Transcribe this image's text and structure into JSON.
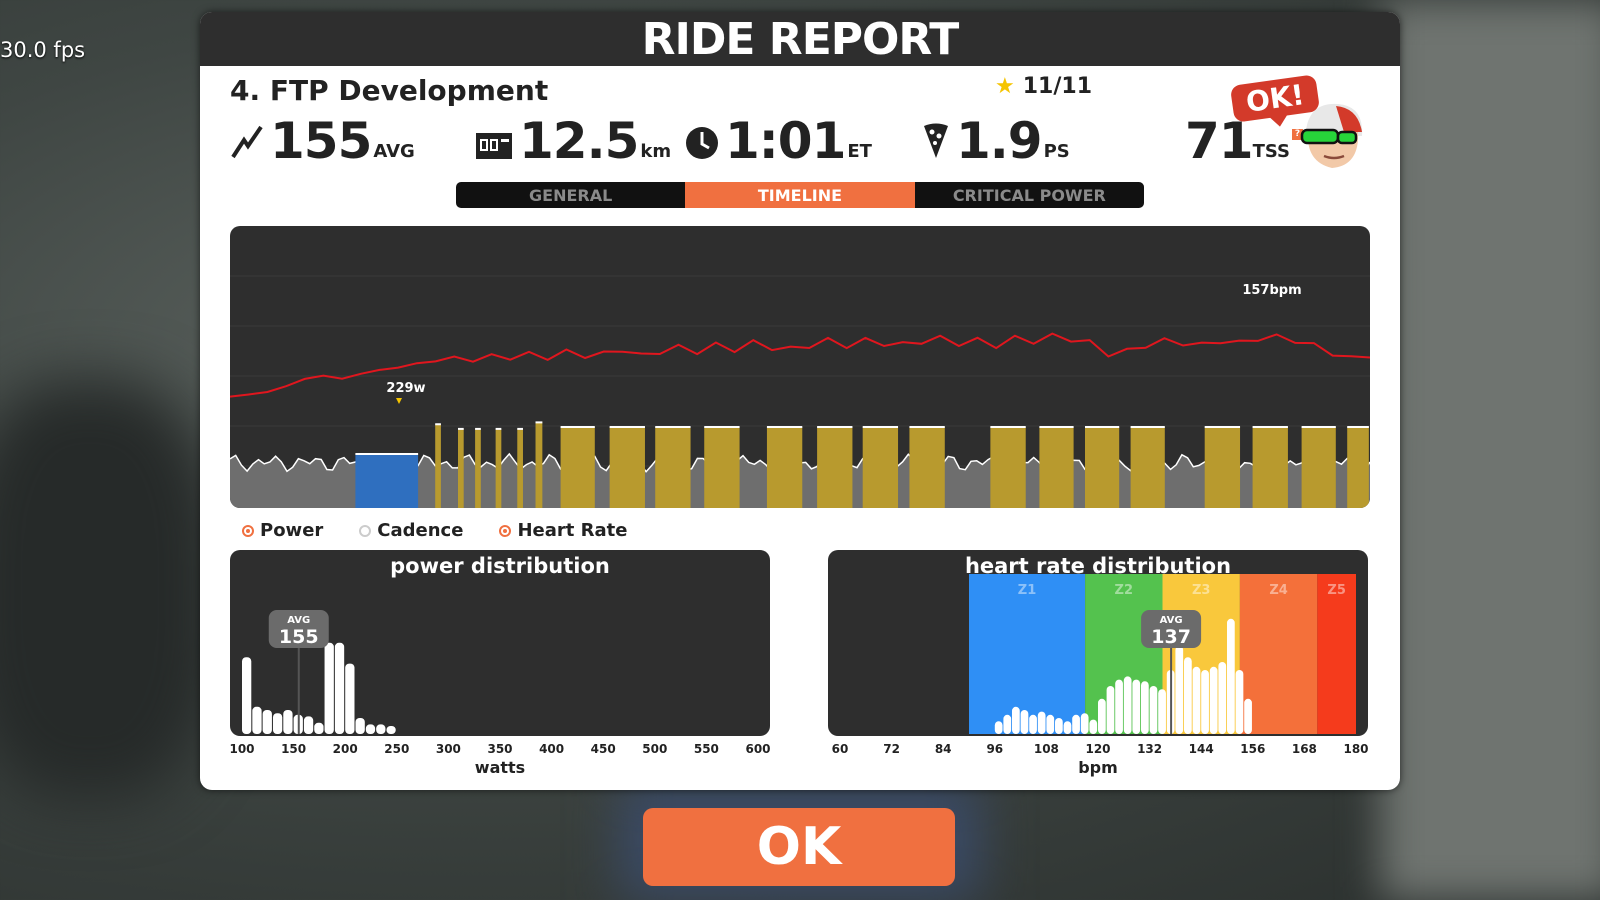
{
  "overlay": {
    "fps": "30.0 fps"
  },
  "report": {
    "title": "RIDE REPORT",
    "workout_name": "4. FTP Development",
    "stars": "11/11"
  },
  "stats": {
    "power": {
      "value": "155",
      "unit": "AVG",
      "icon": "power-bolt-icon"
    },
    "distance": {
      "value": "12.5",
      "unit": "km",
      "icon": "odometer-icon"
    },
    "time": {
      "value": "1:01",
      "unit": "ET",
      "icon": "clock-icon"
    },
    "pizza": {
      "value": "1.9",
      "unit": "PS",
      "icon": "pizza-icon"
    },
    "tss": {
      "value": "71",
      "unit": "TSS",
      "help": "?"
    }
  },
  "badge": {
    "label": "OK!"
  },
  "tabs": [
    {
      "label": "GENERAL",
      "active": false
    },
    {
      "label": "TIMELINE",
      "active": true
    },
    {
      "label": "CRITICAL POWER",
      "active": false
    }
  ],
  "timeline": {
    "power_peak_label": "229w",
    "hr_peak_label": "157bpm",
    "colors": {
      "hr_line": "#e0161e",
      "zone_blue": "#2f6fbf",
      "zone_yellow": "#b89a2e",
      "zone_green": "#5fa040",
      "zone_gray": "#6e6e6e"
    },
    "intervals": [
      {
        "start": 0.11,
        "end": 0.165,
        "zone": "blue",
        "level": 0.58
      },
      {
        "start": 0.18,
        "end": 0.185,
        "zone": "yellow",
        "level": 0.9
      },
      {
        "start": 0.2,
        "end": 0.205,
        "zone": "yellow",
        "level": 0.85
      },
      {
        "start": 0.215,
        "end": 0.22,
        "zone": "yellow",
        "level": 0.85
      },
      {
        "start": 0.233,
        "end": 0.238,
        "zone": "yellow",
        "level": 0.85
      },
      {
        "start": 0.252,
        "end": 0.257,
        "zone": "yellow",
        "level": 0.85
      },
      {
        "start": 0.268,
        "end": 0.274,
        "zone": "yellow",
        "level": 0.92
      },
      {
        "start": 0.29,
        "end": 0.32,
        "zone": "yellow",
        "level": 0.87
      },
      {
        "start": 0.333,
        "end": 0.364,
        "zone": "yellow",
        "level": 0.87
      },
      {
        "start": 0.373,
        "end": 0.404,
        "zone": "yellow",
        "level": 0.87
      },
      {
        "start": 0.416,
        "end": 0.447,
        "zone": "yellow",
        "level": 0.87
      },
      {
        "start": 0.471,
        "end": 0.502,
        "zone": "yellow",
        "level": 0.87
      },
      {
        "start": 0.515,
        "end": 0.546,
        "zone": "yellow",
        "level": 0.87
      },
      {
        "start": 0.555,
        "end": 0.586,
        "zone": "yellow",
        "level": 0.87
      },
      {
        "start": 0.596,
        "end": 0.627,
        "zone": "yellow",
        "level": 0.87
      },
      {
        "start": 0.667,
        "end": 0.698,
        "zone": "yellow",
        "level": 0.87
      },
      {
        "start": 0.71,
        "end": 0.74,
        "zone": "yellow",
        "level": 0.87
      },
      {
        "start": 0.75,
        "end": 0.78,
        "zone": "yellow",
        "level": 0.87
      },
      {
        "start": 0.79,
        "end": 0.82,
        "zone": "yellow",
        "level": 0.87
      },
      {
        "start": 0.855,
        "end": 0.886,
        "zone": "yellow",
        "level": 0.87
      },
      {
        "start": 0.897,
        "end": 0.928,
        "zone": "yellow",
        "level": 0.87
      },
      {
        "start": 0.94,
        "end": 0.97,
        "zone": "yellow",
        "level": 0.87
      },
      {
        "start": 0.98,
        "end": 0.999,
        "zone": "yellow",
        "level": 0.87
      }
    ],
    "hr_trace": [
      0.52,
      0.53,
      0.54,
      0.57,
      0.6,
      0.62,
      0.6,
      0.63,
      0.64,
      0.66,
      0.67,
      0.69,
      0.7,
      0.69,
      0.71,
      0.7,
      0.72,
      0.7,
      0.73,
      0.71,
      0.72,
      0.74,
      0.71,
      0.73,
      0.75,
      0.73,
      0.76,
      0.74,
      0.77,
      0.75,
      0.74,
      0.76,
      0.78,
      0.76,
      0.78,
      0.77,
      0.76,
      0.78,
      0.79,
      0.77,
      0.78,
      0.76,
      0.79,
      0.78,
      0.8,
      0.79,
      0.77,
      0.72,
      0.73,
      0.76,
      0.78,
      0.77,
      0.76,
      0.78,
      0.77,
      0.79,
      0.8,
      0.78,
      0.76,
      0.72,
      0.7,
      0.71
    ]
  },
  "legend": [
    {
      "label": "Power",
      "checked": true
    },
    {
      "label": "Cadence",
      "checked": false
    },
    {
      "label": "Heart Rate",
      "checked": true
    }
  ],
  "power_distribution": {
    "title": "power distribution",
    "avg_label": "AVG",
    "avg_value": "155",
    "xlabel": "watts",
    "ticks": [
      "100",
      "150",
      "200",
      "250",
      "300",
      "350",
      "400",
      "450",
      "500",
      "550",
      "600"
    ],
    "bars": [
      {
        "x": 100,
        "v": 0.48
      },
      {
        "x": 110,
        "v": 0.17
      },
      {
        "x": 120,
        "v": 0.15
      },
      {
        "x": 130,
        "v": 0.13
      },
      {
        "x": 140,
        "v": 0.15
      },
      {
        "x": 150,
        "v": 0.12
      },
      {
        "x": 160,
        "v": 0.11
      },
      {
        "x": 170,
        "v": 0.07
      },
      {
        "x": 180,
        "v": 0.57
      },
      {
        "x": 190,
        "v": 0.57
      },
      {
        "x": 200,
        "v": 0.44
      },
      {
        "x": 210,
        "v": 0.1
      },
      {
        "x": 220,
        "v": 0.06
      },
      {
        "x": 230,
        "v": 0.06
      },
      {
        "x": 240,
        "v": 0.05
      }
    ]
  },
  "hr_distribution": {
    "title": "heart rate distribution",
    "avg_label": "AVG",
    "avg_value": "137",
    "xlabel": "bpm",
    "ticks": [
      "60",
      "72",
      "84",
      "96",
      "108",
      "120",
      "132",
      "144",
      "156",
      "168",
      "180"
    ],
    "zones": [
      {
        "label": "Z1",
        "from": 90,
        "to": 117,
        "color": "#2f8ff5"
      },
      {
        "label": "Z2",
        "from": 117,
        "to": 135,
        "color": "#54c24e"
      },
      {
        "label": "Z3",
        "from": 135,
        "to": 153,
        "color": "#f9c83c"
      },
      {
        "label": "Z4",
        "from": 153,
        "to": 171,
        "color": "#f4703a"
      },
      {
        "label": "Z5",
        "from": 171,
        "to": 180,
        "color": "#f53b1c"
      }
    ],
    "bars": [
      {
        "x": 96,
        "v": 0.08
      },
      {
        "x": 98,
        "v": 0.12
      },
      {
        "x": 100,
        "v": 0.17
      },
      {
        "x": 102,
        "v": 0.15
      },
      {
        "x": 104,
        "v": 0.12
      },
      {
        "x": 106,
        "v": 0.14
      },
      {
        "x": 108,
        "v": 0.12
      },
      {
        "x": 110,
        "v": 0.1
      },
      {
        "x": 112,
        "v": 0.08
      },
      {
        "x": 114,
        "v": 0.12
      },
      {
        "x": 116,
        "v": 0.13
      },
      {
        "x": 118,
        "v": 0.09
      },
      {
        "x": 120,
        "v": 0.22
      },
      {
        "x": 122,
        "v": 0.3
      },
      {
        "x": 124,
        "v": 0.34
      },
      {
        "x": 126,
        "v": 0.36
      },
      {
        "x": 128,
        "v": 0.34
      },
      {
        "x": 130,
        "v": 0.33
      },
      {
        "x": 132,
        "v": 0.3
      },
      {
        "x": 134,
        "v": 0.28
      },
      {
        "x": 136,
        "v": 0.4
      },
      {
        "x": 138,
        "v": 0.55
      },
      {
        "x": 140,
        "v": 0.48
      },
      {
        "x": 142,
        "v": 0.42
      },
      {
        "x": 144,
        "v": 0.4
      },
      {
        "x": 146,
        "v": 0.42
      },
      {
        "x": 148,
        "v": 0.45
      },
      {
        "x": 150,
        "v": 0.72
      },
      {
        "x": 152,
        "v": 0.4
      },
      {
        "x": 154,
        "v": 0.22
      }
    ]
  },
  "footer": {
    "ok_label": "OK"
  }
}
